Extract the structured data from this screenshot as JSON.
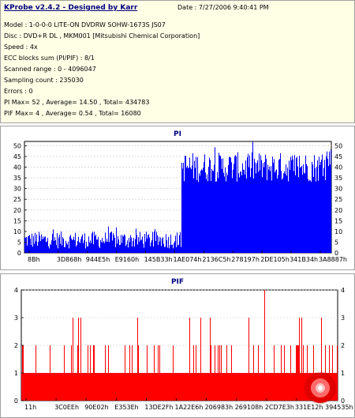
{
  "header": {
    "title": "KProbe v2.4.2 - Designed by Karr",
    "date": "Date : 7/27/2006 9:40:41 PM",
    "lines": [
      "Model : 1-0-0-0 LITE-ON DVDRW SOHW-1673S JS07",
      "Disc : DVD+R DL , MKM001 [Mitsubishi Chemical Corporation]",
      "Speed : 4x",
      "ECC blocks sum (PI/PIF) : 8/1",
      "Scanned range : 0 - 4096047",
      "Sampling count : 235030",
      "Errors : 0",
      "PI Max= 52 , Average= 14.50 , Total= 434783",
      "PIF Max= 4 , Average= 0.54 , Total= 16080"
    ]
  },
  "chart_data": [
    {
      "type": "bar",
      "title": "PI",
      "ylim": [
        0,
        52
      ],
      "yticks": [
        0,
        5,
        10,
        15,
        20,
        25,
        30,
        35,
        40,
        45,
        50
      ],
      "xtick_labels": [
        "8Bh",
        "3D868h",
        "944E5h",
        "E9160h",
        "145B33h",
        "1AE074h",
        "2136C5h",
        "278197h",
        "2DE105h",
        "341B34h",
        "3A8887h"
      ],
      "color": "#0000ff",
      "segments": [
        {
          "x_range": [
            0.0,
            0.51
          ],
          "level": 6,
          "spread": 4
        },
        {
          "x_range": [
            0.51,
            1.0
          ],
          "level": 40,
          "spread": 7
        }
      ],
      "max": 52
    },
    {
      "type": "bar",
      "title": "PIF",
      "ylim": [
        0,
        4
      ],
      "yticks": [
        0,
        1,
        2,
        3,
        4
      ],
      "xtick_labels": [
        "11h",
        "3C0EEh",
        "90E02h",
        "E353Eh",
        "13DE2Fh",
        "1A22E6h",
        "206983h",
        "269108h",
        "2CD7E3h",
        "331E12h",
        "394535h"
      ],
      "color": "#ff0000",
      "baseline_level": 1,
      "max": 4
    }
  ]
}
